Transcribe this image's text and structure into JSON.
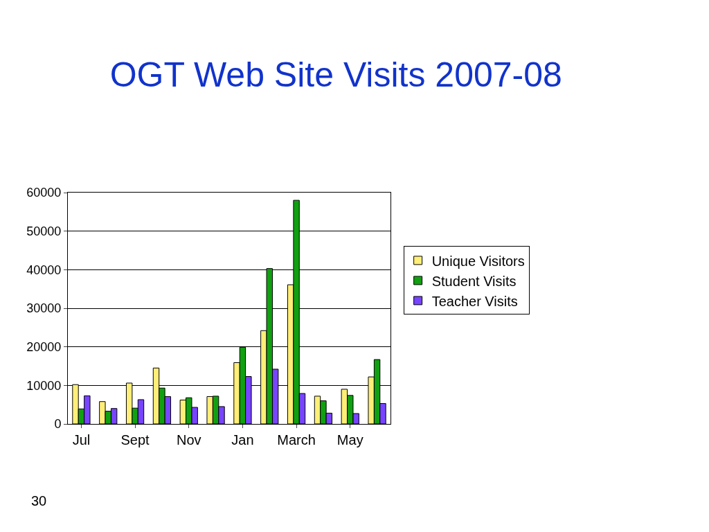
{
  "chart_data": {
    "type": "bar",
    "title": "OGT Web Site Visits 2007-08",
    "categories": [
      "Jul",
      null,
      "Sept",
      null,
      "Nov",
      null,
      "Jan",
      null,
      "March",
      null,
      "May",
      null
    ],
    "series": [
      {
        "name": "Unique Visitors",
        "color": "#ffee77",
        "values": [
          10200,
          5800,
          10600,
          14500,
          6200,
          7100,
          15900,
          24200,
          36100,
          7200,
          9000,
          12200
        ]
      },
      {
        "name": "Student Visits",
        "color": "#11a011",
        "values": [
          3900,
          3300,
          4100,
          9300,
          6800,
          7200,
          19900,
          40300,
          58000,
          6000,
          7400,
          16700
        ]
      },
      {
        "name": "Teacher Visits",
        "color": "#7744ff",
        "values": [
          7300,
          4000,
          6300,
          7100,
          4300,
          4500,
          12300,
          14200,
          7900,
          2800,
          2700,
          5300
        ]
      }
    ],
    "ylim": [
      0,
      60000
    ],
    "yticks": [
      0,
      10000,
      20000,
      30000,
      40000,
      50000,
      60000
    ],
    "grid": "y",
    "legend": "right",
    "annotations": [
      "30"
    ]
  }
}
